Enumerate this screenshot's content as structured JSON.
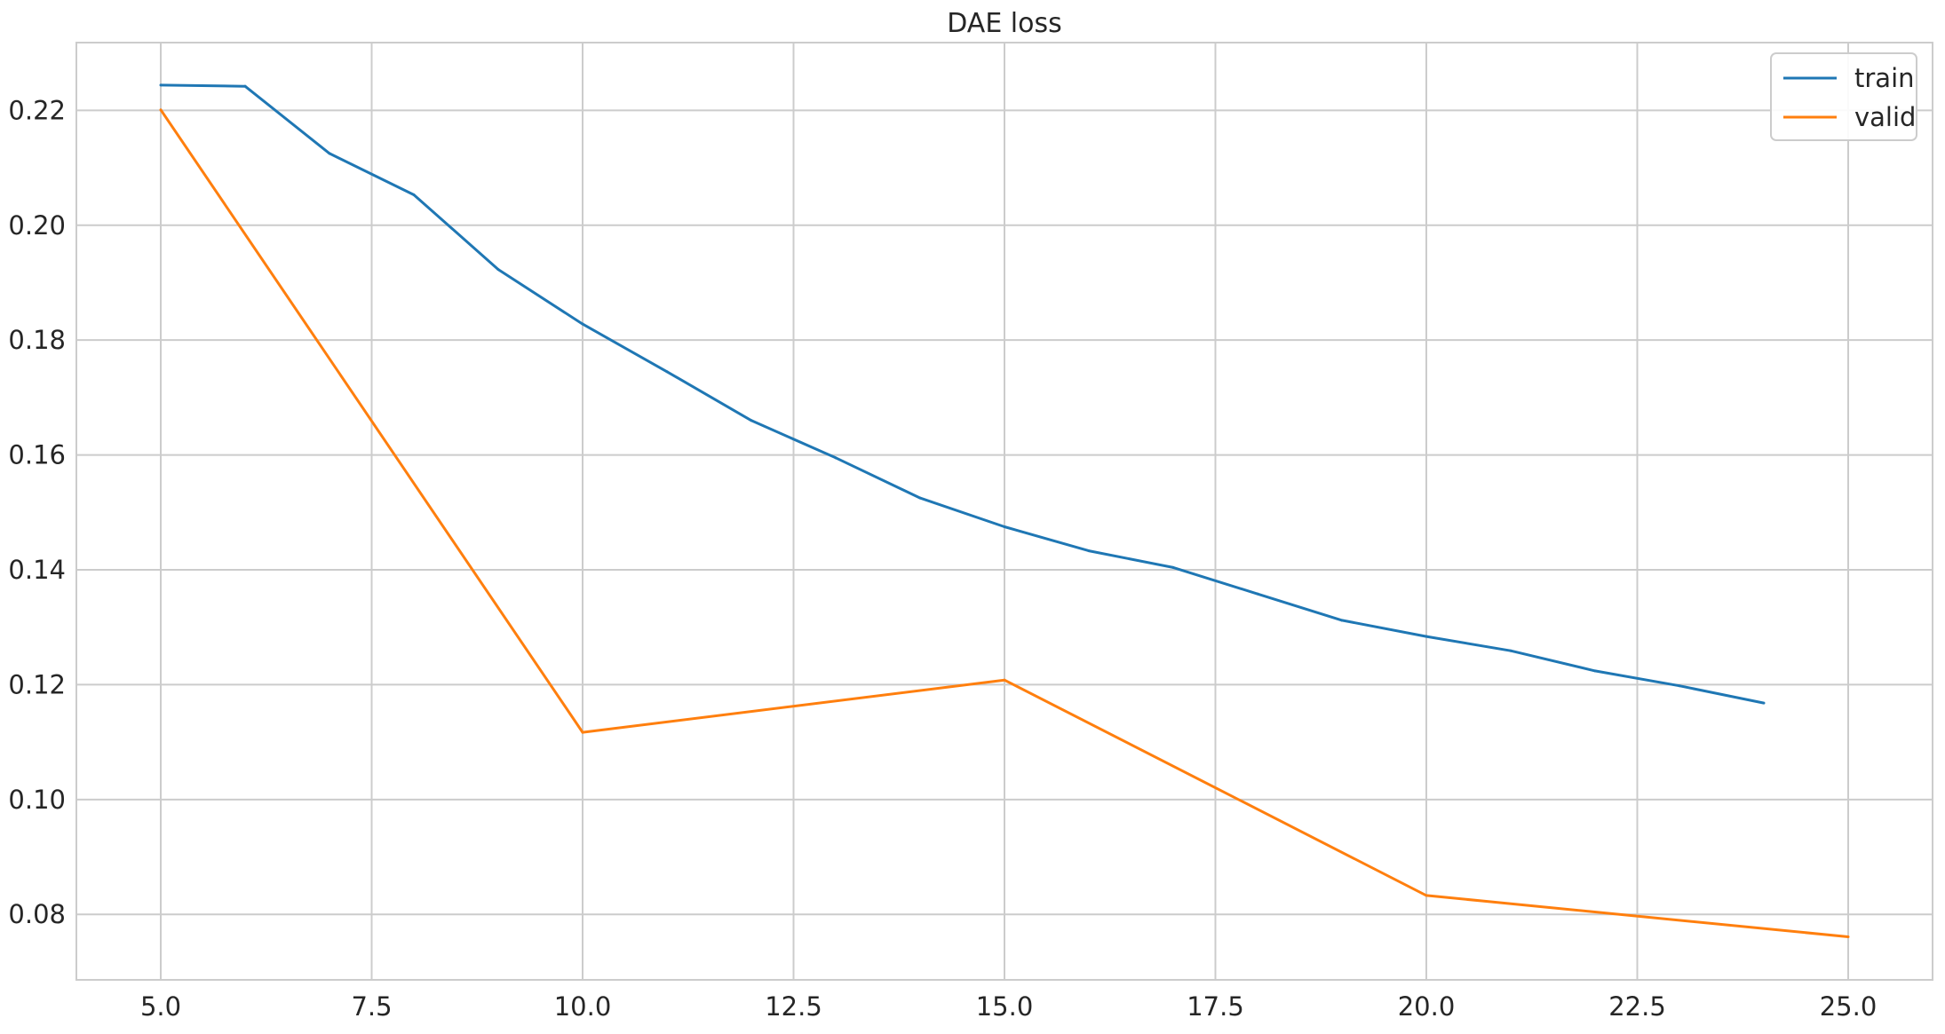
{
  "chart_data": {
    "type": "line",
    "title": "DAE loss",
    "xlabel": "",
    "ylabel": "",
    "xlim": [
      4.0,
      26.0
    ],
    "ylim": [
      0.0686,
      0.2318
    ],
    "xticks": [
      5.0,
      7.5,
      10.0,
      12.5,
      15.0,
      17.5,
      20.0,
      22.5,
      25.0
    ],
    "xtick_labels": [
      "5.0",
      "7.5",
      "10.0",
      "12.5",
      "15.0",
      "17.5",
      "20.0",
      "22.5",
      "25.0"
    ],
    "yticks": [
      0.08,
      0.1,
      0.12,
      0.14,
      0.16,
      0.18,
      0.2,
      0.22
    ],
    "ytick_labels": [
      "0.08",
      "0.10",
      "0.12",
      "0.14",
      "0.16",
      "0.18",
      "0.20",
      "0.22"
    ],
    "grid": true,
    "legend_position": "top-right",
    "series": [
      {
        "name": "train",
        "color": "#1f77b4",
        "x": [
          5,
          6,
          7,
          8,
          9,
          10,
          11,
          12,
          13,
          14,
          15,
          16,
          17,
          18,
          19,
          20,
          21,
          22,
          23,
          24
        ],
        "y": [
          0.2244,
          0.2242,
          0.2125,
          0.2053,
          0.1923,
          0.1828,
          0.1745,
          0.166,
          0.1595,
          0.1525,
          0.1475,
          0.1433,
          0.1404,
          0.1358,
          0.1312,
          0.1284,
          0.1259,
          0.1224,
          0.1198,
          0.1168
        ]
      },
      {
        "name": "valid",
        "color": "#ff7f0e",
        "x": [
          5,
          10,
          15,
          20,
          25
        ],
        "y": [
          0.2201,
          0.1117,
          0.1208,
          0.0833,
          0.0761
        ]
      }
    ]
  }
}
